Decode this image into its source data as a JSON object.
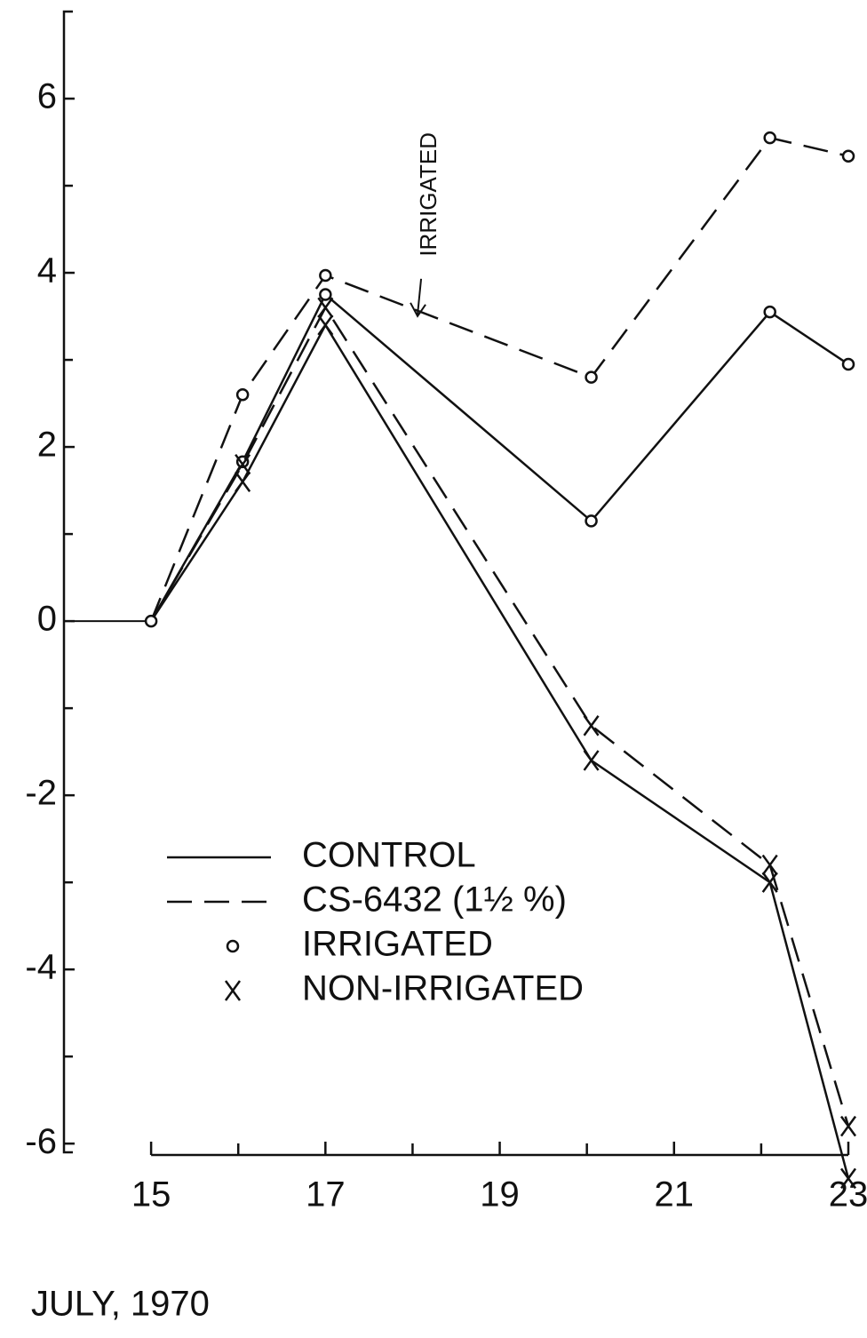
{
  "chart_data": {
    "type": "line",
    "x_label": "JULY, 1970",
    "xlim": [
      14,
      23
    ],
    "xticks": [
      15,
      17,
      19,
      21,
      23
    ],
    "xminor": [
      16,
      18,
      20,
      22
    ],
    "ylim": [
      -6.1,
      7
    ],
    "yticks": [
      -6,
      -4,
      -2,
      0,
      2,
      4,
      6
    ],
    "yminor": [
      -5,
      -3,
      -1,
      1,
      3,
      5
    ],
    "x": [
      15,
      16.05,
      17,
      20.05,
      22.1,
      23
    ],
    "series": [
      {
        "dash": "dashed",
        "marker": "circle",
        "color": "#111",
        "values": [
          0,
          2.6,
          3.97,
          2.8,
          5.55,
          5.34
        ]
      },
      {
        "dash": "solid",
        "marker": "circle",
        "color": "#111",
        "values": [
          0,
          1.83,
          3.75,
          1.15,
          3.55,
          2.95
        ]
      },
      {
        "dash": "dashed",
        "marker": "cross",
        "color": "#111",
        "values": [
          0,
          1.8,
          3.6,
          -1.2,
          -2.8,
          -5.8
        ]
      },
      {
        "dash": "solid",
        "marker": "cross",
        "color": "#111",
        "values": [
          0,
          1.6,
          3.4,
          -1.6,
          -3.0,
          -6.4
        ]
      }
    ],
    "legend": [
      {
        "label": "CONTROL",
        "dash": "solid"
      },
      {
        "label": "CS-6432 (1½ %)",
        "dash": "dashed"
      },
      {
        "label": "IRRIGATED",
        "marker": "circle"
      },
      {
        "label": "NON-IRRIGATED",
        "marker": "cross"
      }
    ],
    "annotation": {
      "text": "IRRIGATED",
      "x": 18.2,
      "y": 4.9
    }
  }
}
